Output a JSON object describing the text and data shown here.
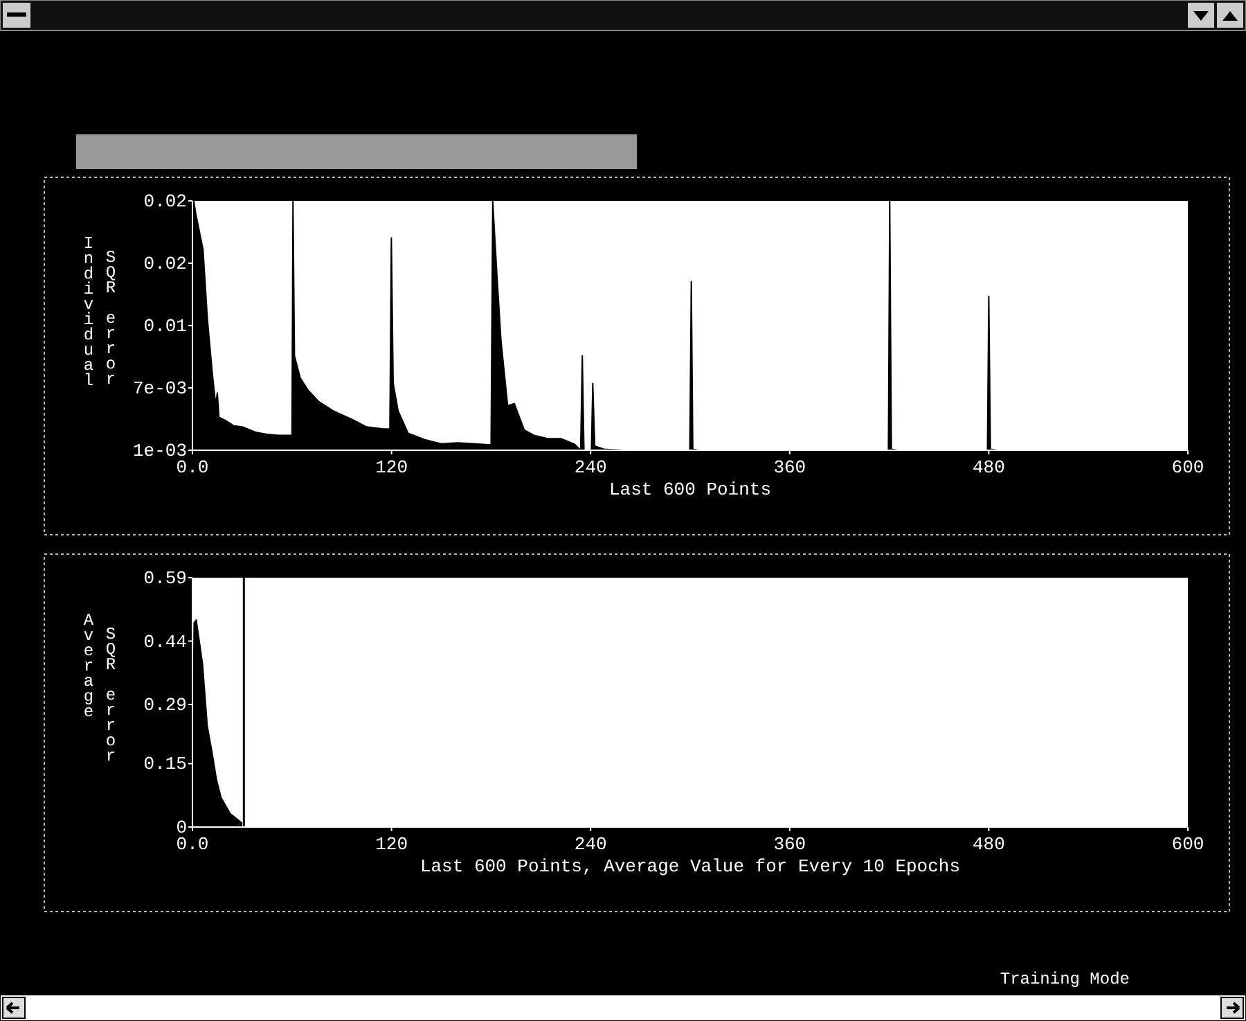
{
  "chart_data": [
    {
      "type": "area",
      "ylabel": "Individual SQR error",
      "xlabel": "Last 600 Points",
      "xlim": [
        0,
        600
      ],
      "xticks": [
        {
          "value": 0,
          "label": "0.0"
        },
        120,
        240,
        360,
        480,
        600
      ],
      "ylim": [
        0.001,
        0.0245
      ],
      "yticks": [
        {
          "value": 0.001,
          "label": "1e-03"
        },
        {
          "value": 0.006875,
          "label": "7e-03"
        },
        {
          "value": 0.01275,
          "label": "0.01"
        },
        {
          "value": 0.018625,
          "label": "0.02"
        },
        {
          "value": 0.0245,
          "label": "0.02"
        }
      ],
      "series": [
        {
          "color": "#000000",
          "x": [
            0,
            0.8,
            2,
            6.4,
            9,
            12,
            14,
            15,
            16,
            20,
            25,
            30,
            38,
            45,
            52,
            60,
            60.6,
            61.5,
            65,
            70,
            76,
            85,
            95,
            105,
            115,
            119,
            119.9,
            121,
            124,
            130,
            140,
            150,
            160,
            170,
            180,
            181,
            183.5,
            186,
            190,
            194,
            200,
            206,
            214,
            222,
            230,
            234,
            235,
            236,
            240.5,
            241.3,
            242.5,
            248,
            260,
            299.8,
            300.7,
            301.6,
            305,
            419.5,
            420.3,
            421.3,
            425,
            479.2,
            480,
            481,
            485,
            600
          ],
          "values": [
            0.001,
            0.0245,
            0.0233,
            0.0199,
            0.0134,
            0.0082,
            0.0053,
            0.0064,
            0.0041,
            0.0038,
            0.0033,
            0.0032,
            0.0027,
            0.0025,
            0.0024,
            0.0024,
            0.0245,
            0.0099,
            0.0078,
            0.0066,
            0.0056,
            0.0047,
            0.004,
            0.0032,
            0.003,
            0.003,
            0.021,
            0.0073,
            0.0047,
            0.0026,
            0.002,
            0.0016,
            0.0017,
            0.0016,
            0.0015,
            0.0245,
            0.0176,
            0.0113,
            0.0052,
            0.0054,
            0.0029,
            0.0024,
            0.0021,
            0.0021,
            0.0016,
            0.001,
            0.0099,
            0.001,
            0.001,
            0.0073,
            0.0014,
            0.0011,
            0.001,
            0.001,
            0.0169,
            0.0011,
            0.001,
            0.001,
            0.0245,
            0.0011,
            0.001,
            0.001,
            0.0155,
            0.0011,
            0.001,
            0.001
          ]
        }
      ]
    },
    {
      "type": "area",
      "ylabel": "Average SQR error",
      "xlabel": "Last 600 Points, Average Value for Every 10 Epochs",
      "xlim": [
        0,
        600
      ],
      "xticks": [
        {
          "value": 0,
          "label": "0.0"
        },
        120,
        240,
        360,
        480,
        600
      ],
      "ylim": [
        0,
        0.59
      ],
      "yticks": [
        0,
        0.15,
        0.29,
        0.44,
        0.59
      ],
      "series": [
        {
          "color": "#000000",
          "x": [
            0,
            1,
            2.3,
            6.1,
            8.9,
            11.7,
            14.4,
            17.2,
            22.7,
            29.6
          ],
          "values": [
            0,
            0.483,
            0.49,
            0.385,
            0.24,
            0.179,
            0.114,
            0.07,
            0.032,
            0.01
          ]
        }
      ],
      "ref_lines": [
        {
          "axis": "x",
          "value": 31,
          "color": "#000000"
        }
      ],
      "annotations": [
        "Training Mode"
      ]
    }
  ]
}
